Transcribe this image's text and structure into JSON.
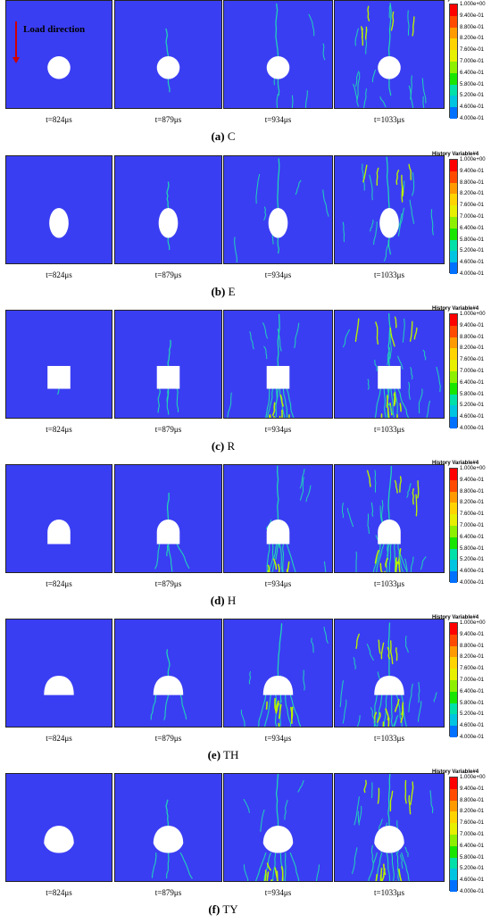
{
  "colorbar": {
    "title": "History Variable#4",
    "labels": [
      "1.000e+00",
      "9.400e-01",
      "8.800e-01",
      "8.200e-01",
      "7.600e-01",
      "7.000e-01",
      "6.400e-01",
      "5.800e-01",
      "5.200e-01",
      "4.600e-01",
      "4.000e-01"
    ],
    "colors": [
      "#ff0000",
      "#ff4a00",
      "#ff9a00",
      "#ffd400",
      "#e6f000",
      "#8df000",
      "#18e600",
      "#00e0a8",
      "#00c4e0",
      "#0070ff",
      "#1d22c8"
    ]
  },
  "load_direction": "Load direction",
  "colors": {
    "background": "#3a3ef2",
    "crack": "#20d4b8",
    "damage": "#b8f000",
    "hole": "#ffffff"
  },
  "times": [
    "t=824μs",
    "t=879μs",
    "t=934μs",
    "t=1033μs"
  ],
  "figures": [
    {
      "id": "a",
      "label": "(a)",
      "name": "C",
      "shape": "circle"
    },
    {
      "id": "b",
      "label": "(b)",
      "name": "E",
      "shape": "ellipse"
    },
    {
      "id": "c",
      "label": "(c)",
      "name": "R",
      "shape": "rect"
    },
    {
      "id": "d",
      "label": "(d)",
      "name": "H",
      "shape": "horseshoe"
    },
    {
      "id": "e",
      "label": "(e)",
      "name": "TH",
      "shape": "three-center-arch"
    },
    {
      "id": "f",
      "label": "(f)",
      "name": "TY",
      "shape": "elliptic-arch"
    }
  ]
}
